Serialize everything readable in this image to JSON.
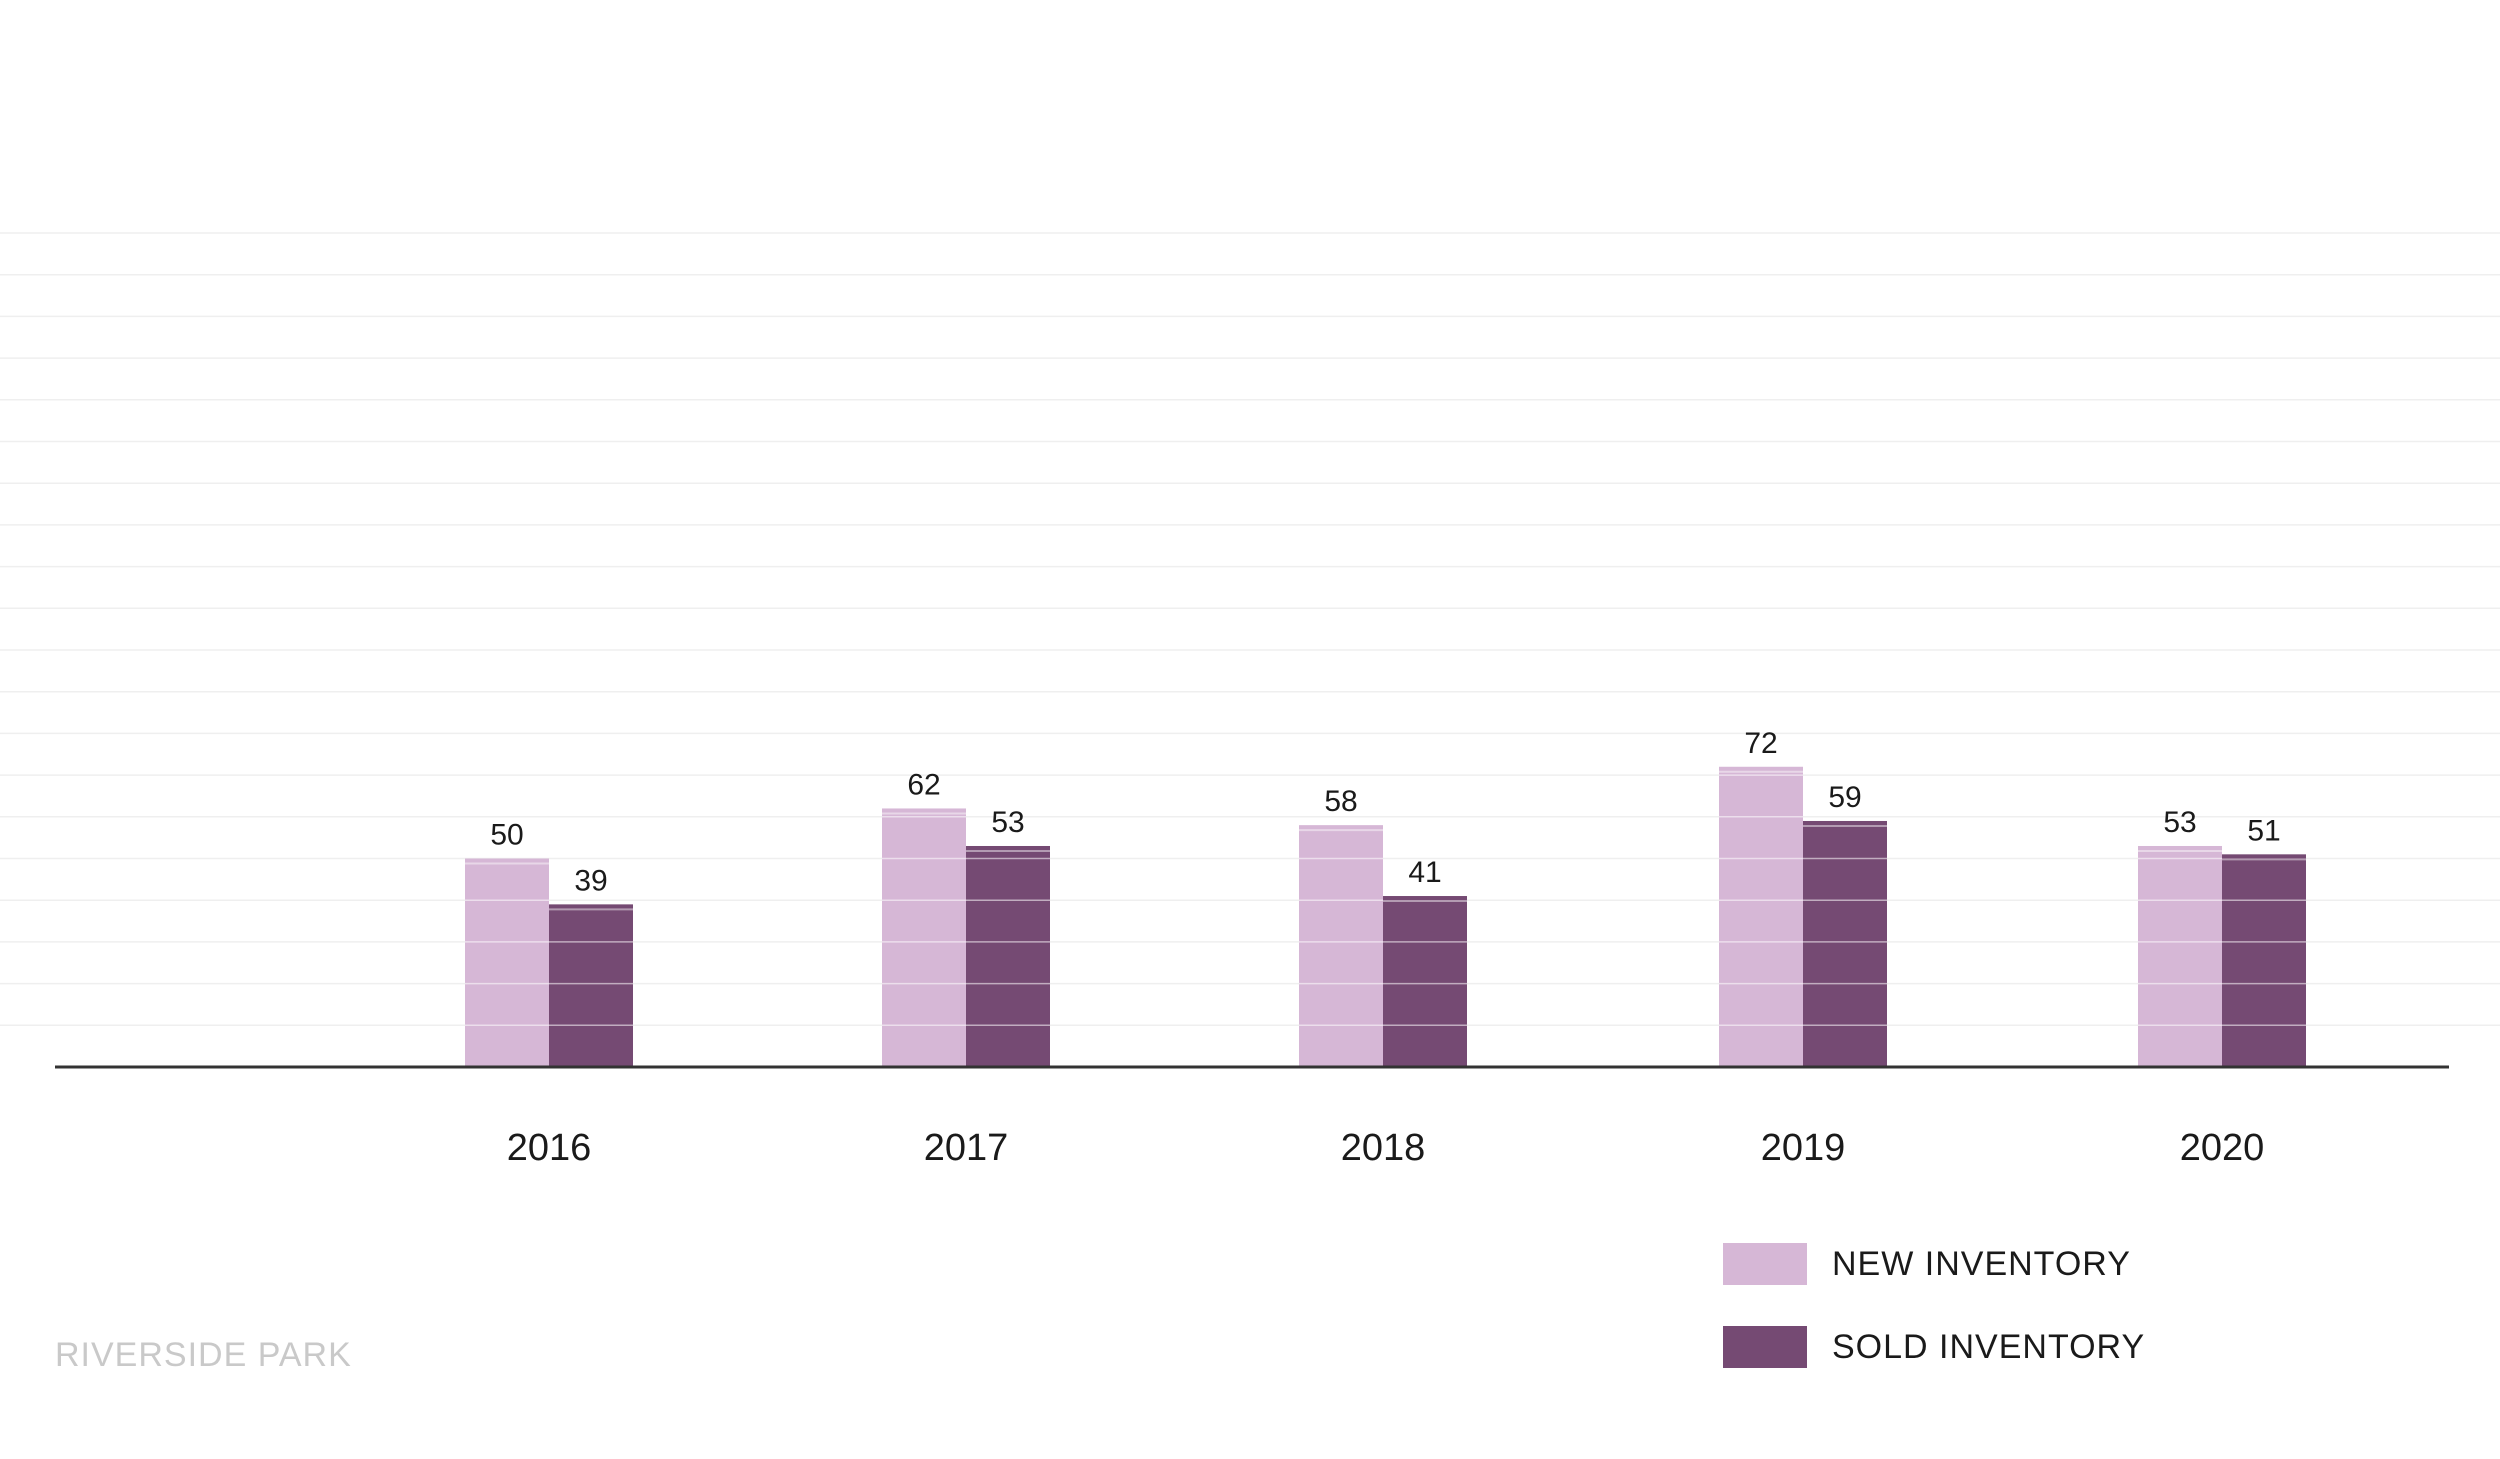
{
  "chart_data": {
    "type": "bar",
    "categories": [
      "2016",
      "2017",
      "2018",
      "2019",
      "2020"
    ],
    "series": [
      {
        "name": "NEW INVENTORY",
        "values": [
          50,
          62,
          58,
          72,
          53
        ],
        "color": "#d6b7d6"
      },
      {
        "name": "SOLD INVENTORY",
        "values": [
          39,
          53,
          41,
          59,
          51
        ],
        "color": "#754a73"
      }
    ],
    "ylim": [
      0,
      200
    ],
    "grid": true,
    "legend_position": "bottom-right",
    "colors": {
      "grid": "#efefef",
      "baseline": "#333333",
      "label": "#1a1a1a"
    }
  },
  "footer": {
    "label": "RIVERSIDE PARK"
  }
}
